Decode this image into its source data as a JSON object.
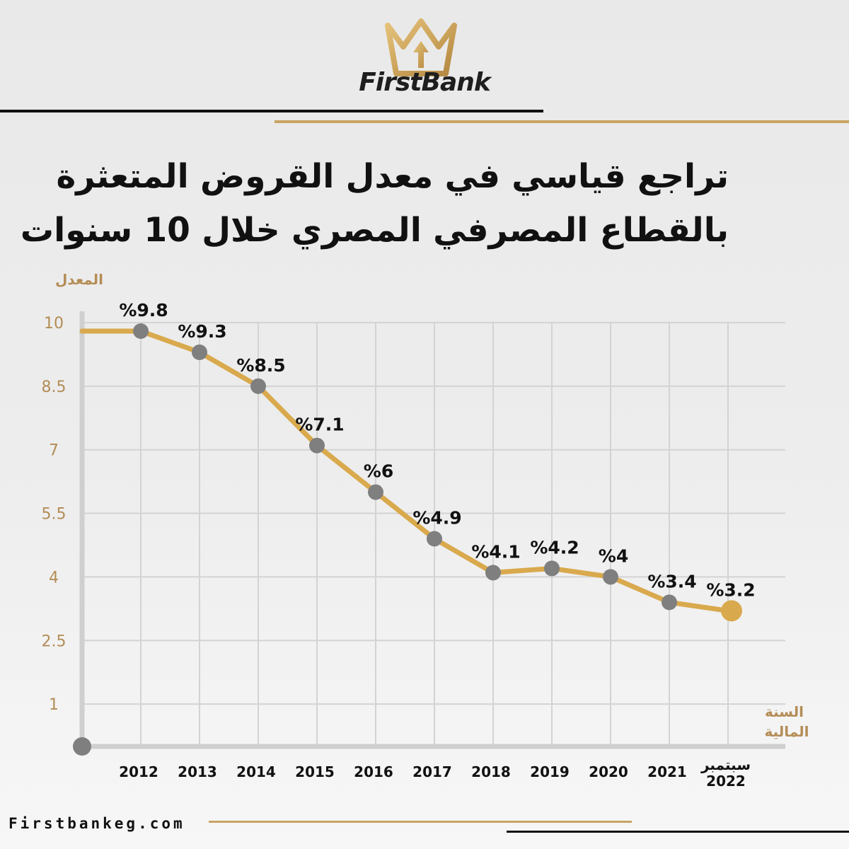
{
  "brand": {
    "name": "FirstBank",
    "website": "Firstbankeg.com"
  },
  "colors": {
    "gold": "#c9a463",
    "line": "#d9a94d",
    "marker": "#7f7f7f",
    "last_marker": "#d9a94d",
    "axis": "#cfcfcf",
    "grid": "#d3d3d3",
    "text": "#111111"
  },
  "icons": [
    "crown-logo-icon"
  ],
  "chart_data": {
    "type": "line",
    "title": "تراجع قياسي في معدل القروض المتعثرة بالقطاع المصرفي المصري خلال 10 سنوات",
    "title_lines": [
      "تراجع قياسي في معدل القروض المتعثرة",
      "بالقطاع المصرفي المصري خلال 10 سنوات"
    ],
    "ylabel": "المعدل",
    "xlabel_lines": [
      "السنة",
      "المالية"
    ],
    "yticks": [
      "10",
      "8.5",
      "7",
      "5.5",
      "4",
      "2.5",
      "1"
    ],
    "ylim": [
      0,
      10
    ],
    "grid": true,
    "x_labels": [
      "2012",
      "2013",
      "2014",
      "2015",
      "2016",
      "2017",
      "2018",
      "2019",
      "2020",
      "2021",
      "سبتمبر 2022"
    ],
    "x_label_lines": [
      [
        "2012"
      ],
      [
        "2013"
      ],
      [
        "2014"
      ],
      [
        "2015"
      ],
      [
        "2016"
      ],
      [
        "2017"
      ],
      [
        "2018"
      ],
      [
        "2019"
      ],
      [
        "2020"
      ],
      [
        "2021"
      ],
      [
        "سبتمبر",
        "2022"
      ]
    ],
    "values": [
      9.8,
      9.3,
      8.5,
      7.1,
      6,
      4.9,
      4.1,
      4.2,
      4,
      3.4,
      3.2
    ],
    "data_labels": [
      "%9.8",
      "%9.3",
      "%8.5",
      "%7.1",
      "%6",
      "%4.9",
      "%4.1",
      "%4.2",
      "%4",
      "%3.4",
      "%3.2"
    ]
  }
}
